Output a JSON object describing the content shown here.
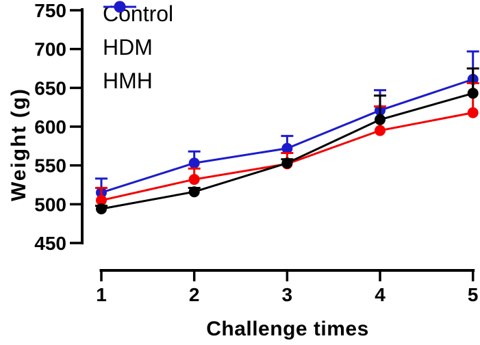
{
  "figure": {
    "background": "#ffffff",
    "axis_color": "#000000"
  },
  "chart_data": {
    "type": "line",
    "title": "",
    "xlabel": "Challenge times",
    "ylabel": "Weight (g)",
    "x": [
      1,
      2,
      3,
      4,
      5
    ],
    "xticks": [
      1,
      2,
      3,
      4,
      5
    ],
    "yticks": [
      450,
      500,
      550,
      600,
      650,
      700,
      750
    ],
    "ylim": [
      450,
      750
    ],
    "grid": false,
    "legend_position": "top-left-inside",
    "error_bars": "upward SD bars with caps",
    "series": [
      {
        "name": "Control",
        "color": "#000000",
        "values": [
          494,
          516,
          553,
          609,
          643
        ],
        "errors_up": [
          4,
          5,
          5,
          31,
          32
        ]
      },
      {
        "name": "HDM",
        "color": "#f40000",
        "values": [
          505,
          532,
          552,
          595,
          618
        ],
        "errors_up": [
          16,
          14,
          14,
          31,
          38
        ]
      },
      {
        "name": "HMH",
        "color": "#1b1bcd",
        "values": [
          515,
          553,
          572,
          621,
          661
        ],
        "errors_up": [
          18,
          15,
          16,
          26,
          36
        ]
      }
    ]
  }
}
